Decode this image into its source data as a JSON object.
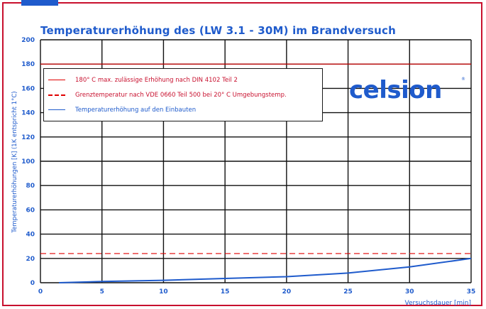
{
  "chart_data": {
    "type": "line",
    "title": "Temperaturerhöhung des (LW 3.1 - 30M) im Brandversuch",
    "xlabel": "Versuchsdauer [min]",
    "ylabel": "Temperaturerhöhungen [K] (1K entspricht 1°C)",
    "xlim": [
      0,
      35
    ],
    "ylim": [
      0,
      200
    ],
    "xticks": [
      0,
      5,
      10,
      15,
      20,
      25,
      30,
      35
    ],
    "yticks": [
      0,
      20,
      40,
      60,
      80,
      100,
      120,
      140,
      160,
      180,
      200
    ],
    "grid": true,
    "legend_position": "top-left",
    "series": [
      {
        "name": "180° C max. zulässige Erhöhung nach DIN 4102 Teil 2",
        "style": "solid",
        "color": "#e00000",
        "x": [
          0,
          35
        ],
        "y": [
          180,
          180
        ]
      },
      {
        "name": "Grenztemperatur nach VDE 0660 Teil 500 bei 20° C Umgebungstemp.",
        "style": "dashed",
        "color": "#e00000",
        "x": [
          0,
          35
        ],
        "y": [
          24,
          24
        ]
      },
      {
        "name": "Temperaturerhöhung auf den Einbauten",
        "style": "solid",
        "color": "#1f5bcc",
        "x": [
          1.5,
          5,
          10,
          15,
          20,
          25,
          30,
          35
        ],
        "y": [
          0,
          1,
          2,
          3.5,
          5,
          8,
          13,
          20
        ]
      }
    ]
  },
  "logo": {
    "text": "celsion",
    "mark": "®"
  }
}
